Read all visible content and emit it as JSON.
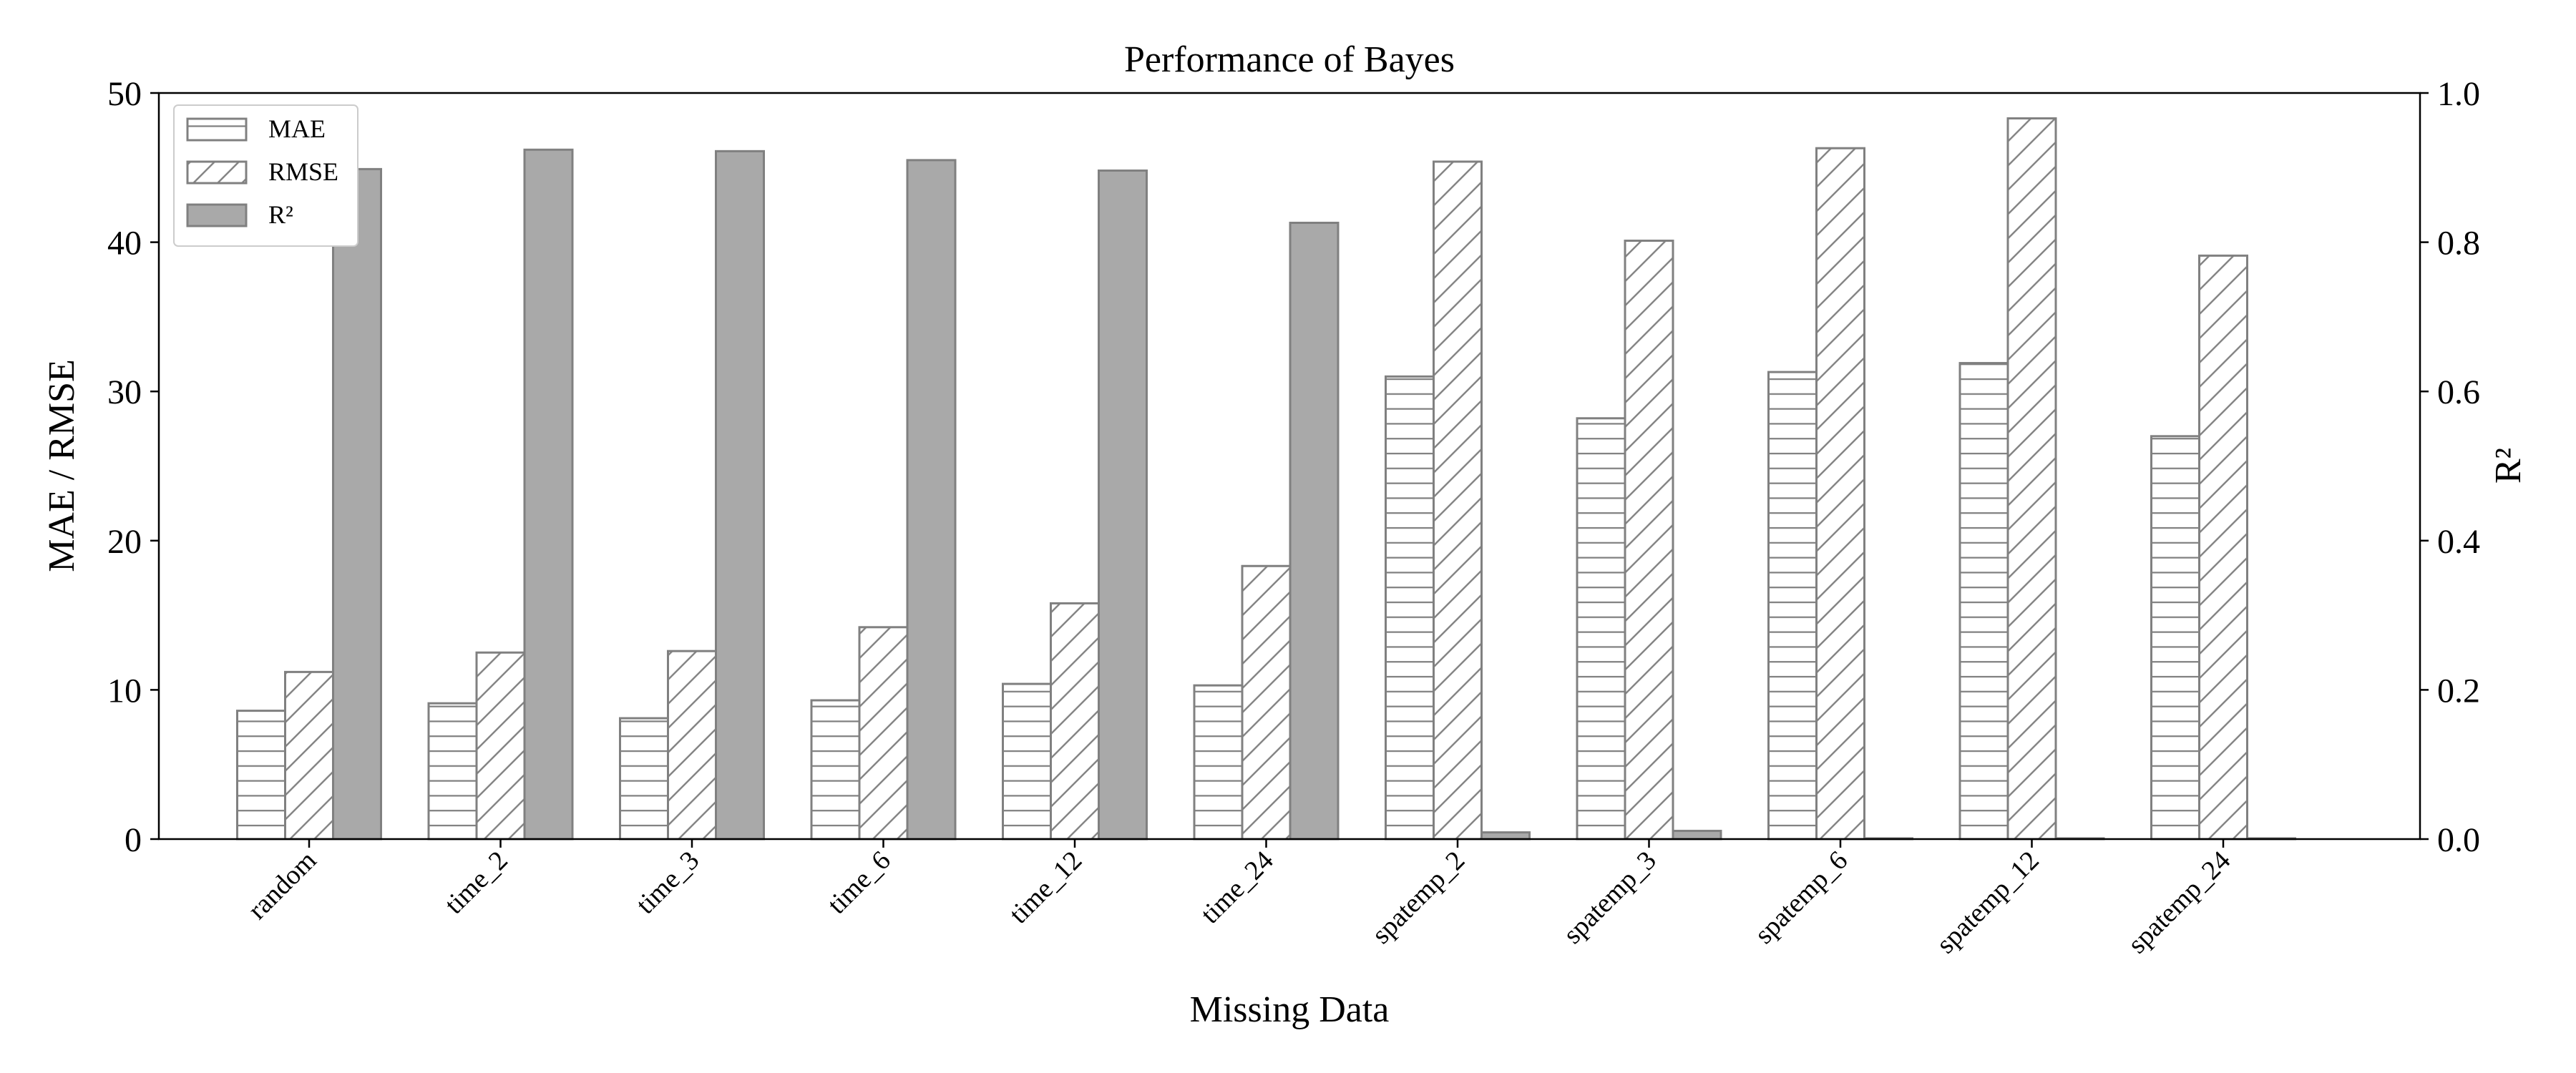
{
  "chart_data": {
    "type": "bar",
    "title": "Performance of Bayes",
    "xlabel": "Missing Data",
    "ylabel": "MAE / RMSE",
    "y2label": "R²",
    "categories": [
      "random",
      "time_2",
      "time_3",
      "time_6",
      "time_12",
      "time_24",
      "spatemp_2",
      "spatemp_3",
      "spatemp_6",
      "spatemp_12",
      "spatemp_24"
    ],
    "series": [
      {
        "name": "MAE",
        "axis": "left",
        "values": [
          8.6,
          9.1,
          8.1,
          9.3,
          10.4,
          10.3,
          31.0,
          28.2,
          31.3,
          31.9,
          27.0
        ]
      },
      {
        "name": "RMSE",
        "axis": "left",
        "values": [
          11.2,
          12.5,
          12.6,
          14.2,
          15.8,
          18.3,
          45.4,
          40.1,
          46.3,
          48.3,
          39.1
        ]
      },
      {
        "name": "R²",
        "axis": "right",
        "values": [
          0.898,
          0.924,
          0.922,
          0.91,
          0.896,
          0.826,
          0.009,
          0.011,
          0.001,
          0.001,
          0.001
        ]
      }
    ],
    "ylim": [
      0,
      50
    ],
    "y2lim": [
      0,
      1.0
    ],
    "yticks": [
      "0",
      "10",
      "20",
      "30",
      "40",
      "50"
    ],
    "y2ticks": [
      "0.0",
      "0.2",
      "0.4",
      "0.6",
      "0.8",
      "1.0"
    ],
    "legend_position": "top-left",
    "grid": false,
    "colors": {
      "bar_edge": "#808080",
      "r2_fill": "#a9a9a9",
      "hatch_line": "#808080"
    }
  }
}
